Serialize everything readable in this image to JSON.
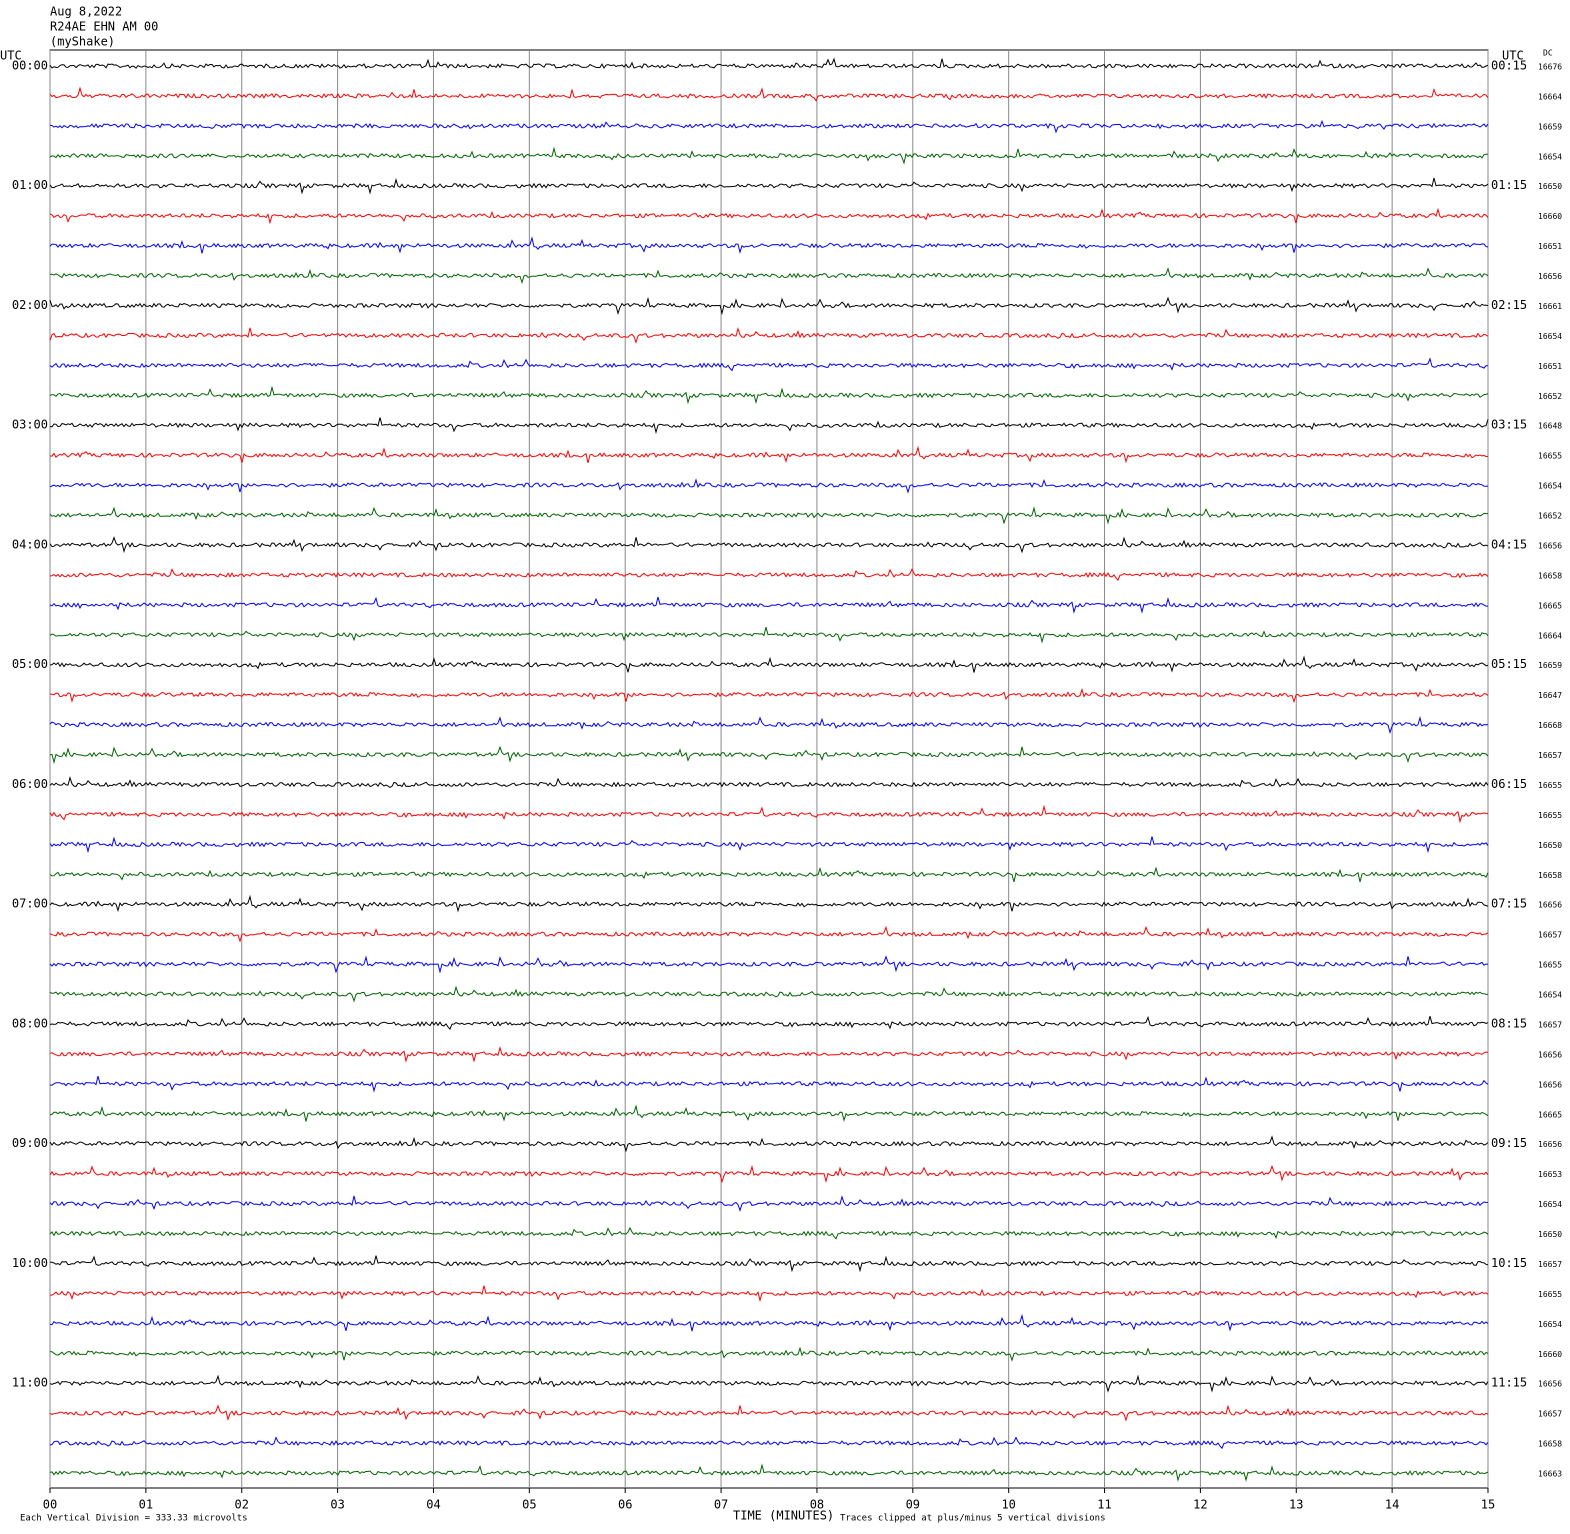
{
  "chart_data": {
    "type": "helicorder",
    "title": [
      "Aug 8,2022",
      "R24AE EHN AM 00",
      "(myShake)"
    ],
    "left_axis_title": "UTC",
    "right_axis_title": "UTC",
    "dc_title": "DC",
    "xlabel": "TIME (MINUTES)",
    "scale_note": "Each Vertical Division =  333.33 microvolts",
    "clip_note": "Traces clipped at plus/minus 5 vertical divisions",
    "xlim": [
      0,
      15
    ],
    "xticks": [
      {
        "value": 0,
        "label": "00"
      },
      {
        "value": 1,
        "label": "01"
      },
      {
        "value": 2,
        "label": "02"
      },
      {
        "value": 3,
        "label": "03"
      },
      {
        "value": 4,
        "label": "04"
      },
      {
        "value": 5,
        "label": "05"
      },
      {
        "value": 6,
        "label": "06"
      },
      {
        "value": 7,
        "label": "07"
      },
      {
        "value": 8,
        "label": "08"
      },
      {
        "value": 9,
        "label": "09"
      },
      10,
      11,
      12,
      13,
      14,
      15
    ],
    "grid": true,
    "colors": [
      "#000000",
      "#ff0000",
      "#0000ff",
      "#006400"
    ],
    "hours": [
      {
        "left": "00:00",
        "right": "00:15"
      },
      {
        "left": "01:00",
        "right": "01:15"
      },
      {
        "left": "02:00",
        "right": "02:15"
      },
      {
        "left": "03:00",
        "right": "03:15"
      },
      {
        "left": "04:00",
        "right": "04:15"
      },
      {
        "left": "05:00",
        "right": "05:15"
      },
      {
        "left": "06:00",
        "right": "06:15"
      },
      {
        "left": "07:00",
        "right": "07:15"
      },
      {
        "left": "08:00",
        "right": "08:15"
      },
      {
        "left": "09:00",
        "right": "09:15"
      },
      {
        "left": "10:00",
        "right": "10:15"
      },
      {
        "left": "11:00",
        "right": "11:15"
      }
    ],
    "dc": [
      16676,
      16664,
      16659,
      16654,
      16650,
      16660,
      16651,
      16656,
      16661,
      16654,
      16651,
      16652,
      16648,
      16655,
      16654,
      16652,
      16656,
      16658,
      16665,
      16664,
      16659,
      16647,
      16668,
      16657,
      16655,
      16655,
      16650,
      16658,
      16656,
      16657,
      16655,
      16654,
      16657,
      16656,
      16656,
      16665,
      16656,
      16653,
      16654,
      16650,
      16657,
      16655,
      16654,
      16660,
      16656,
      16657,
      16658,
      16663
    ]
  }
}
